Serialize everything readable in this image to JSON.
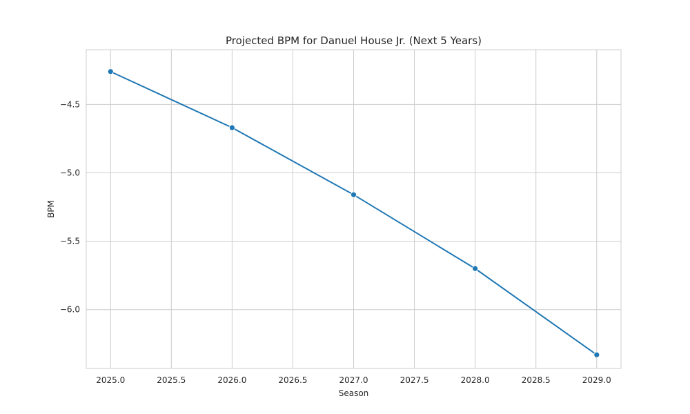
{
  "chart_data": {
    "type": "line",
    "title": "Projected BPM for Danuel House Jr. (Next 5 Years)",
    "xlabel": "Season",
    "ylabel": "BPM",
    "xlim": [
      2024.8,
      2029.2
    ],
    "ylim": [
      -6.43,
      -4.1
    ],
    "grid": true,
    "x_ticks": [
      2025.0,
      2025.5,
      2026.0,
      2026.5,
      2027.0,
      2027.5,
      2028.0,
      2028.5,
      2029.0
    ],
    "x_tick_labels": [
      "2025.0",
      "2025.5",
      "2026.0",
      "2026.5",
      "2027.0",
      "2027.5",
      "2028.0",
      "2028.5",
      "2029.0"
    ],
    "y_ticks": [
      -4.5,
      -5.0,
      -5.5,
      -6.0
    ],
    "y_tick_labels": [
      "−4.5",
      "−5.0",
      "−5.5",
      "−6.0"
    ],
    "series": [
      {
        "name": "BPM",
        "color": "#1f77b4",
        "x": [
          2025,
          2026,
          2027,
          2028,
          2029
        ],
        "values": [
          -4.26,
          -4.67,
          -5.16,
          -5.7,
          -6.33
        ]
      }
    ]
  }
}
